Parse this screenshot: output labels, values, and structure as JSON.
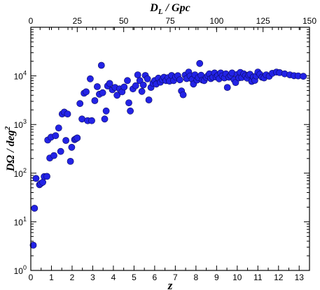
{
  "chart_data": {
    "type": "scatter",
    "title": "",
    "xlabel": "z",
    "ylabel": "DΩ / deg²",
    "x2label": "D_L / Gpc",
    "xlim": [
      0,
      13.5
    ],
    "ylim": [
      1,
      100000
    ],
    "ylog": true,
    "x2lim": [
      0,
      150
    ],
    "x_ticks": [
      "0",
      "1",
      "2",
      "3",
      "4",
      "5",
      "6",
      "7",
      "8",
      "9",
      "10",
      "11",
      "12",
      "13"
    ],
    "x2_ticks": [
      "0",
      "25",
      "50",
      "75",
      "100",
      "125",
      "150"
    ],
    "y_ticks": [
      {
        "base": "10",
        "exp": "0"
      },
      {
        "base": "10",
        "exp": "1"
      },
      {
        "base": "10",
        "exp": "2"
      },
      {
        "base": "10",
        "exp": "3"
      },
      {
        "base": "10",
        "exp": "4"
      }
    ],
    "marker_color": "#2323e6",
    "series": [
      {
        "points": [
          [
            0.12,
            3.3
          ],
          [
            0.18,
            19
          ],
          [
            0.25,
            78
          ],
          [
            0.42,
            58
          ],
          [
            0.48,
            61
          ],
          [
            0.58,
            65
          ],
          [
            0.65,
            85
          ],
          [
            0.78,
            86
          ],
          [
            0.82,
            480
          ],
          [
            0.92,
            205
          ],
          [
            0.98,
            550
          ],
          [
            1.12,
            230
          ],
          [
            1.2,
            590
          ],
          [
            1.35,
            850
          ],
          [
            1.45,
            280
          ],
          [
            1.52,
            1650
          ],
          [
            1.62,
            1800
          ],
          [
            1.7,
            470
          ],
          [
            1.78,
            1650
          ],
          [
            1.92,
            175
          ],
          [
            1.98,
            340
          ],
          [
            2.12,
            490
          ],
          [
            2.18,
            510
          ],
          [
            2.25,
            530
          ],
          [
            2.38,
            2700
          ],
          [
            2.48,
            1300
          ],
          [
            2.58,
            4400
          ],
          [
            2.68,
            4700
          ],
          [
            2.75,
            1200
          ],
          [
            2.88,
            8700
          ],
          [
            2.95,
            1200
          ],
          [
            3.1,
            3100
          ],
          [
            3.22,
            6000
          ],
          [
            3.32,
            4200
          ],
          [
            3.42,
            16500
          ],
          [
            3.48,
            4500
          ],
          [
            3.58,
            1300
          ],
          [
            3.65,
            1900
          ],
          [
            3.72,
            6200
          ],
          [
            3.82,
            7000
          ],
          [
            3.95,
            5200
          ],
          [
            4.08,
            5800
          ],
          [
            4.18,
            4000
          ],
          [
            4.3,
            5400
          ],
          [
            4.42,
            4700
          ],
          [
            4.52,
            5900
          ],
          [
            4.68,
            8000
          ],
          [
            4.75,
            2800
          ],
          [
            4.82,
            1900
          ],
          [
            4.95,
            5400
          ],
          [
            5.08,
            6300
          ],
          [
            5.18,
            10500
          ],
          [
            5.28,
            8000
          ],
          [
            5.38,
            4800
          ],
          [
            5.45,
            6500
          ],
          [
            5.55,
            10200
          ],
          [
            5.65,
            8700
          ],
          [
            5.72,
            3200
          ],
          [
            5.82,
            5800
          ],
          [
            5.92,
            7100
          ],
          [
            6.0,
            8000
          ],
          [
            6.08,
            6800
          ],
          [
            6.18,
            9000
          ],
          [
            6.28,
            7400
          ],
          [
            6.38,
            8300
          ],
          [
            6.45,
            9400
          ],
          [
            6.55,
            8000
          ],
          [
            6.65,
            9200
          ],
          [
            6.72,
            7800
          ],
          [
            6.82,
            10200
          ],
          [
            6.92,
            8000
          ],
          [
            7.02,
            9500
          ],
          [
            7.12,
            10100
          ],
          [
            7.22,
            8300
          ],
          [
            7.3,
            4900
          ],
          [
            7.38,
            4100
          ],
          [
            7.48,
            10400
          ],
          [
            7.55,
            8800
          ],
          [
            7.65,
            12000
          ],
          [
            7.72,
            10000
          ],
          [
            7.82,
            8500
          ],
          [
            7.88,
            6800
          ],
          [
            7.95,
            10500
          ],
          [
            8.05,
            8200
          ],
          [
            8.12,
            9200
          ],
          [
            8.18,
            18000
          ],
          [
            8.25,
            10300
          ],
          [
            8.32,
            8200
          ],
          [
            8.4,
            8000
          ],
          [
            8.5,
            9300
          ],
          [
            8.58,
            10100
          ],
          [
            8.65,
            11000
          ],
          [
            8.72,
            8800
          ],
          [
            8.82,
            9400
          ],
          [
            8.9,
            11500
          ],
          [
            8.98,
            9500
          ],
          [
            9.05,
            10100
          ],
          [
            9.12,
            8700
          ],
          [
            9.2,
            11500
          ],
          [
            9.28,
            10000
          ],
          [
            9.38,
            9100
          ],
          [
            9.45,
            11000
          ],
          [
            9.52,
            5800
          ],
          [
            9.6,
            9400
          ],
          [
            9.68,
            10200
          ],
          [
            9.75,
            11500
          ],
          [
            9.85,
            8300
          ],
          [
            9.92,
            7300
          ],
          [
            10.0,
            10700
          ],
          [
            10.08,
            9100
          ],
          [
            10.15,
            11800
          ],
          [
            10.22,
            9300
          ],
          [
            10.32,
            11000
          ],
          [
            10.4,
            10100
          ],
          [
            10.48,
            9000
          ],
          [
            10.55,
            10400
          ],
          [
            10.62,
            10800
          ],
          [
            10.7,
            7700
          ],
          [
            10.78,
            9500
          ],
          [
            10.85,
            8100
          ],
          [
            10.92,
            10000
          ],
          [
            11.0,
            12000
          ],
          [
            11.1,
            10800
          ],
          [
            11.2,
            9400
          ],
          [
            11.3,
            9100
          ],
          [
            11.4,
            10500
          ],
          [
            11.55,
            9800
          ],
          [
            11.7,
            11300
          ],
          [
            11.9,
            12000
          ],
          [
            12.05,
            11700
          ],
          [
            12.3,
            11000
          ],
          [
            12.55,
            10500
          ],
          [
            12.75,
            10100
          ],
          [
            12.95,
            10000
          ],
          [
            13.2,
            9800
          ]
        ]
      }
    ]
  }
}
